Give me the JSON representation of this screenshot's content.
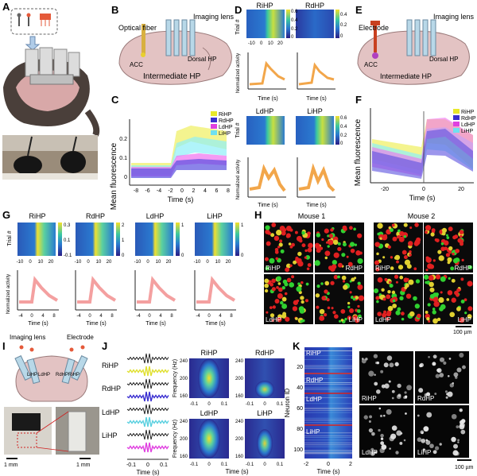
{
  "panels": {
    "A": "A",
    "B": "B",
    "C": "C",
    "D": "D",
    "E": "E",
    "F": "F",
    "G": "G",
    "H": "H",
    "I": "I",
    "J": "J",
    "K": "K"
  },
  "regions": [
    "RiHP",
    "RdHP",
    "LdHP",
    "LiHP"
  ],
  "colors": {
    "RiHP": "#e8e82a",
    "RdHP": "#3a2fd0",
    "LdHP": "#e040e0",
    "LiHP": "#6ee0f0",
    "orange": "#f0962a",
    "pink": "#f08080"
  },
  "panel_B": {
    "optical_fiber": "Optical fiber",
    "imaging_lens": "Imaging lens",
    "acc": "ACC",
    "dorsal_hp": "Dorsal HP",
    "intermediate_hp": "Intermediate HP"
  },
  "panel_C": {
    "ylabel": "Mean fluorescence",
    "xlabel": "Time (s)",
    "xticks": [
      "-8",
      "-6",
      "-4",
      "-2",
      "0",
      "2",
      "4",
      "6",
      "8"
    ],
    "yticks": [
      "0",
      "0.1",
      "0.2"
    ]
  },
  "panel_D": {
    "titles": [
      "RiHP",
      "RdHP",
      "LdHP",
      "LiHP"
    ],
    "ylabel_trial": "Trial #",
    "ylabel_activity": "Normalized activity",
    "xlabel": "Time (s)",
    "colorbar_ticks": [
      "0.6",
      "0.4",
      "0.2",
      "0"
    ],
    "colorbar_ticks_2": [
      "0.4",
      "0.2",
      "0"
    ],
    "colorbar_ticks_3": [
      "0.6",
      "0.4",
      "0.2",
      "0"
    ],
    "trial_ticks": [
      "5",
      "10",
      "15",
      "20"
    ],
    "xticks": [
      "-10",
      "0",
      "10",
      "20"
    ],
    "xticks2": [
      "-4",
      "0",
      "4",
      "8"
    ],
    "trace_yticks": [
      "0.2",
      "0.1",
      "0"
    ]
  },
  "panel_E": {
    "electrode": "Electrode",
    "imaging_lens": "Imaging lens",
    "acc": "ACC",
    "dorsal_hp": "Dorsal HP",
    "intermediate_hp": "Intermediate HP"
  },
  "panel_F": {
    "ylabel": "Mean fluorescence",
    "xlabel": "Time (s)",
    "xticks": [
      "-20",
      "0",
      "20"
    ],
    "yticks": [
      "0",
      "0.05",
      "0.1"
    ]
  },
  "panel_G": {
    "titles": [
      "RiHP",
      "RdHP",
      "LdHP",
      "LiHP"
    ],
    "cb_ticks": [
      [
        "0.3",
        "0.1",
        "-0.1"
      ],
      [
        "2",
        "1",
        "0"
      ],
      [
        "1",
        "0"
      ],
      [
        "1",
        "0"
      ]
    ],
    "ylabel_trial": "Trial #",
    "ylabel_activity": "Normalized activity",
    "xlabel": "Time (s)",
    "trial_ticks": [
      "5",
      "10",
      "15",
      "20"
    ],
    "xticks": [
      "-10",
      "0",
      "10",
      "20"
    ],
    "xticks2": [
      "-4",
      "0",
      "4",
      "8"
    ],
    "trace_yticks": [
      "0.06",
      "0"
    ]
  },
  "panel_H": {
    "mouse1": "Mouse 1",
    "mouse2": "Mouse 2",
    "scale": "100 µm"
  },
  "panel_I": {
    "imaging_lens": "Imaging lens",
    "electrode": "Electrode",
    "lihp": "LiHP",
    "ldhp": "LdHP",
    "rdhp": "RdHP",
    "rihp": "RiHP",
    "scale1": "1 mm",
    "scale2": "1 mm"
  },
  "panel_J": {
    "labels": [
      "RiHP",
      "RdHP",
      "LdHP",
      "LiHP"
    ],
    "spec_titles": [
      "RiHP",
      "RdHP",
      "LdHP",
      "LiHP"
    ],
    "ylabel": "Frequency (Hz)",
    "xlabel": "Time (s)",
    "yticks": [
      "240",
      "200",
      "160"
    ],
    "xticks": [
      "-0.1",
      "0",
      "0.1"
    ],
    "trace_xticks": [
      "-0.1",
      "0",
      "0.1"
    ]
  },
  "panel_K": {
    "ylabel": "Neuron ID",
    "xlabel": "Time (s)",
    "yticks": [
      "20",
      "40",
      "60",
      "80",
      "100"
    ],
    "xticks": [
      "-2",
      "0",
      "2"
    ],
    "groups": [
      "RiHP",
      "RdHP",
      "LdHP",
      "LiHP"
    ],
    "scale": "100 µm"
  }
}
